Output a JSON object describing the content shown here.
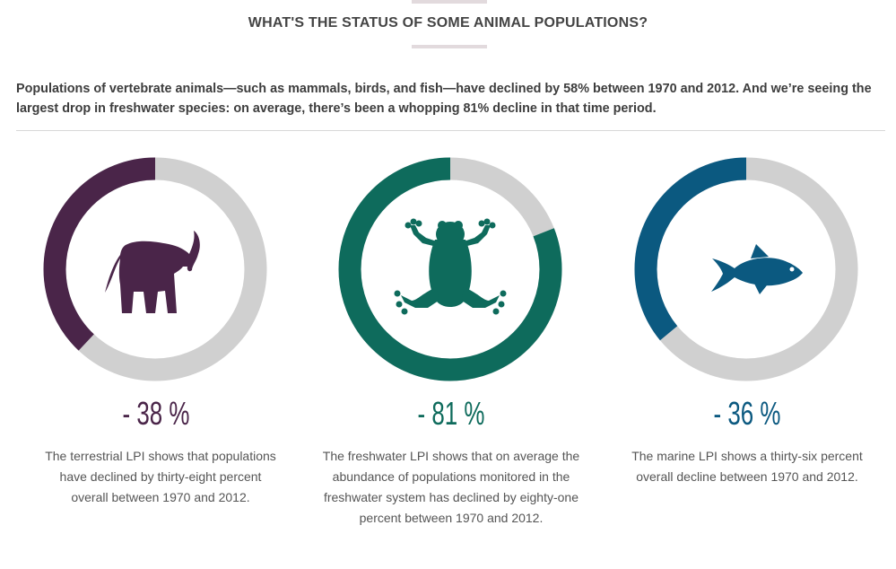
{
  "header": {
    "title": "WHAT'S THE STATUS OF SOME ANIMAL POPULATIONS?"
  },
  "intro": "Populations of vertebrate animals—such as mammals, birds, and fish—have declined by 58% between 1970 and 2012. And we’re seeing the largest drop in freshwater species: on average, there’s been a whopping 81% decline in that time period.",
  "colors": {
    "terrestrial": "#4a2549",
    "freshwater": "#0e6b5c",
    "marine": "#0b5980",
    "track": "#d0d0d0",
    "title_bar": "#e2dadd"
  },
  "chart_data": [
    {
      "type": "pie",
      "name": "terrestrial",
      "icon": "elephant-icon",
      "decline_percent": 38,
      "label": "- 38 %",
      "description": "The terrestrial LPI shows that populations have declined by thirty-eight percent overall between 1970 and 2012."
    },
    {
      "type": "pie",
      "name": "freshwater",
      "icon": "frog-icon",
      "decline_percent": 81,
      "label": "- 81 %",
      "description": "The freshwater LPI shows that on average the abundance of populations monitored in the freshwater system has declined by eighty-one percent between 1970 and 2012."
    },
    {
      "type": "pie",
      "name": "marine",
      "icon": "fish-icon",
      "decline_percent": 36,
      "label": "- 36 %",
      "description": "The marine LPI shows a thirty-six percent overall decline between 1970 and 2012."
    }
  ]
}
